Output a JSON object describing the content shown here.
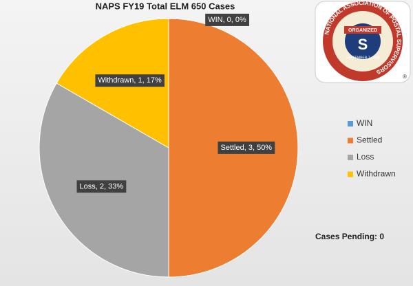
{
  "chart_data": {
    "type": "pie",
    "title": "NAPS FY19 Total ELM 650 Cases",
    "categories": [
      "WIN",
      "Settled",
      "Loss",
      "Withdrawn"
    ],
    "values": [
      0,
      3,
      2,
      1
    ],
    "value_labels": [
      "WIN, 0, 0%",
      "Settled, 3, 50%",
      "Loss, 2, 33%",
      "Withdrawn, 1, 17%"
    ],
    "colors": [
      "#5b9bd5",
      "#ed7d31",
      "#a5a5a5",
      "#ffc000"
    ],
    "legend": "right",
    "annotation": "Cases Pending: 0"
  },
  "logo": {
    "ring_text": "NATIONAL ASSOCIATION OF POSTAL SUPERVISORS",
    "banner": "ORGANIZED",
    "date": "SEPTEMBER 7, 1908"
  }
}
